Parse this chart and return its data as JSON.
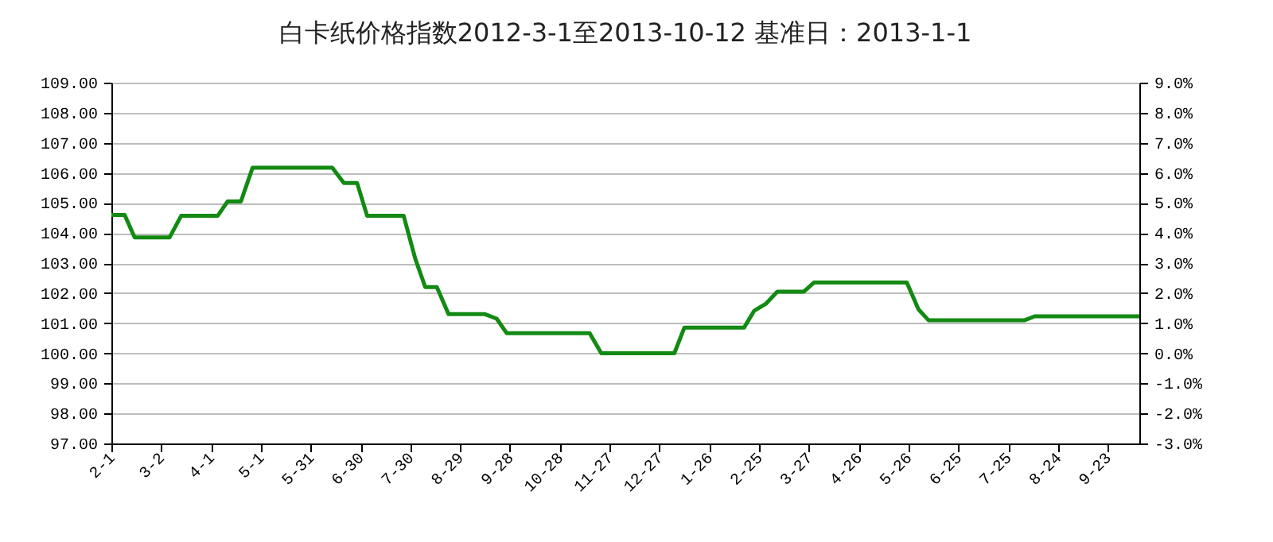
{
  "chart_data": {
    "type": "line",
    "title": "白卡纸价格指数2012-3-1至2013-10-12 基准日：2013-1-1",
    "x": [
      "2012-02-01",
      "2012-02-09",
      "2012-02-15",
      "2012-03-07",
      "2012-03-14",
      "2012-04-05",
      "2012-04-11",
      "2012-04-19",
      "2012-04-26",
      "2012-06-13",
      "2012-06-20",
      "2012-06-28",
      "2012-07-04",
      "2012-07-26",
      "2012-08-02",
      "2012-08-08",
      "2012-08-15",
      "2012-08-22",
      "2012-09-13",
      "2012-09-20",
      "2012-09-26",
      "2012-11-15",
      "2012-11-22",
      "2013-01-05",
      "2013-01-11",
      "2013-02-16",
      "2013-02-22",
      "2013-03-01",
      "2013-03-08",
      "2013-03-24",
      "2013-03-30",
      "2013-05-25",
      "2013-06-01",
      "2013-06-07",
      "2013-08-04",
      "2013-08-10",
      "2013-10-12"
    ],
    "series": [
      {
        "color": "#138a13",
        "values": [
          104.6,
          104.6,
          103.85,
          103.85,
          104.57,
          104.57,
          105.05,
          105.05,
          106.17,
          106.17,
          105.66,
          105.66,
          104.57,
          104.57,
          103.14,
          102.2,
          102.2,
          101.3,
          101.3,
          101.15,
          100.67,
          100.67,
          100.0,
          100.0,
          100.85,
          100.85,
          101.41,
          101.64,
          102.05,
          102.05,
          102.35,
          102.35,
          101.46,
          101.1,
          101.1,
          101.23,
          101.23
        ]
      }
    ],
    "xlim": [
      "2012-02-01",
      "2013-10-12"
    ],
    "xticks": [
      {
        "value": "2012-02-01",
        "label": "2-1"
      },
      {
        "value": "2012-03-02",
        "label": "3-2"
      },
      {
        "value": "2012-04-01",
        "label": "4-1"
      },
      {
        "value": "2012-05-01",
        "label": "5-1"
      },
      {
        "value": "2012-05-31",
        "label": "5-31"
      },
      {
        "value": "2012-06-30",
        "label": "6-30"
      },
      {
        "value": "2012-07-30",
        "label": "7-30"
      },
      {
        "value": "2012-08-29",
        "label": "8-29"
      },
      {
        "value": "2012-09-28",
        "label": "9-28"
      },
      {
        "value": "2012-10-28",
        "label": "10-28"
      },
      {
        "value": "2012-11-27",
        "label": "11-27"
      },
      {
        "value": "2012-12-27",
        "label": "12-27"
      },
      {
        "value": "2013-01-26",
        "label": "1-26"
      },
      {
        "value": "2013-02-25",
        "label": "2-25"
      },
      {
        "value": "2013-03-27",
        "label": "3-27"
      },
      {
        "value": "2013-04-26",
        "label": "4-26"
      },
      {
        "value": "2013-05-26",
        "label": "5-26"
      },
      {
        "value": "2013-06-25",
        "label": "6-25"
      },
      {
        "value": "2013-07-25",
        "label": "7-25"
      },
      {
        "value": "2013-08-24",
        "label": "8-24"
      },
      {
        "value": "2013-09-23",
        "label": "9-23"
      }
    ],
    "ylim": [
      97,
      109
    ],
    "yticks": [
      {
        "value": 97,
        "label": "97.00"
      },
      {
        "value": 98,
        "label": "98.00"
      },
      {
        "value": 99,
        "label": "99.00"
      },
      {
        "value": 100,
        "label": "100.00"
      },
      {
        "value": 101,
        "label": "101.00"
      },
      {
        "value": 102,
        "label": "102.00"
      },
      {
        "value": 103,
        "label": "103.00"
      },
      {
        "value": 104,
        "label": "104.00"
      },
      {
        "value": 105,
        "label": "105.00"
      },
      {
        "value": 106,
        "label": "106.00"
      },
      {
        "value": 107,
        "label": "107.00"
      },
      {
        "value": 108,
        "label": "108.00"
      },
      {
        "value": 109,
        "label": "109.00"
      }
    ],
    "y2lim": [
      -3,
      9
    ],
    "y2ticks": [
      {
        "value": -3,
        "label": "-3.0%"
      },
      {
        "value": -2,
        "label": "-2.0%"
      },
      {
        "value": -1,
        "label": "-1.0%"
      },
      {
        "value": 0,
        "label": "0.0%"
      },
      {
        "value": 1,
        "label": "1.0%"
      },
      {
        "value": 2,
        "label": "2.0%"
      },
      {
        "value": 3,
        "label": "3.0%"
      },
      {
        "value": 4,
        "label": "4.0%"
      },
      {
        "value": 5,
        "label": "5.0%"
      },
      {
        "value": 6,
        "label": "6.0%"
      },
      {
        "value": 7,
        "label": "7.0%"
      },
      {
        "value": 8,
        "label": "8.0%"
      },
      {
        "value": 9,
        "label": "9.0%"
      }
    ],
    "grid": "y",
    "line_style": "solid",
    "marker": "none"
  }
}
